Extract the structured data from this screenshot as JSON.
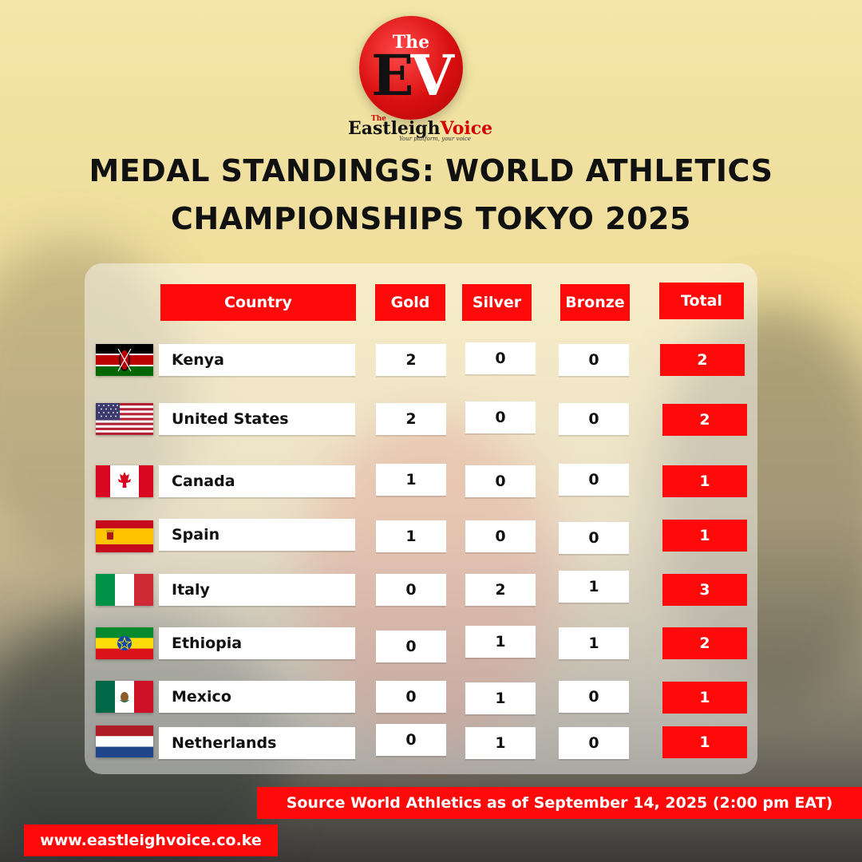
{
  "logo": {
    "the": "The",
    "e": "E",
    "v": "V"
  },
  "brand": {
    "the": "The",
    "name_part1": "Eastleigh",
    "name_part2": "Voice",
    "tagline": "Your platform, your voice"
  },
  "title": {
    "line1": "MEDAL STANDINGS: WORLD ATHLETICS",
    "line2": "CHAMPIONSHIPS TOKYO 2025"
  },
  "columns": {
    "country": "Country",
    "gold": "Gold",
    "silver": "Silver",
    "bronze": "Bronze",
    "total": "Total"
  },
  "rows": [
    {
      "country": "Kenya",
      "flag": "kenya-flag",
      "gold": "2",
      "silver": "0",
      "bronze": "0",
      "total": "2"
    },
    {
      "country": "United States",
      "flag": "usa-flag",
      "gold": "2",
      "silver": "0",
      "bronze": "0",
      "total": "2"
    },
    {
      "country": "Canada",
      "flag": "canada-flag",
      "gold": "1",
      "silver": "0",
      "bronze": "0",
      "total": "1"
    },
    {
      "country": "Spain",
      "flag": "spain-flag",
      "gold": "1",
      "silver": "0",
      "bronze": "0",
      "total": "1"
    },
    {
      "country": "Italy",
      "flag": "italy-flag",
      "gold": "0",
      "silver": "2",
      "bronze": "1",
      "total": "3"
    },
    {
      "country": "Ethiopia",
      "flag": "ethiopia-flag",
      "gold": "0",
      "silver": "1",
      "bronze": "1",
      "total": "2"
    },
    {
      "country": "Mexico",
      "flag": "mexico-flag",
      "gold": "0",
      "silver": "1",
      "bronze": "0",
      "total": "1"
    },
    {
      "country": "Netherlands",
      "flag": "netherlands-flag",
      "gold": "0",
      "silver": "1",
      "bronze": "0",
      "total": "1"
    }
  ],
  "footer": {
    "source": "Source World Athletics as of September 14, 2025 (2:00 pm EAT)",
    "url": "www.eastleighvoice.co.ke"
  },
  "colors": {
    "accent": "#ff0a0a",
    "text": "#111111",
    "logo_red": "#d90f0f"
  }
}
